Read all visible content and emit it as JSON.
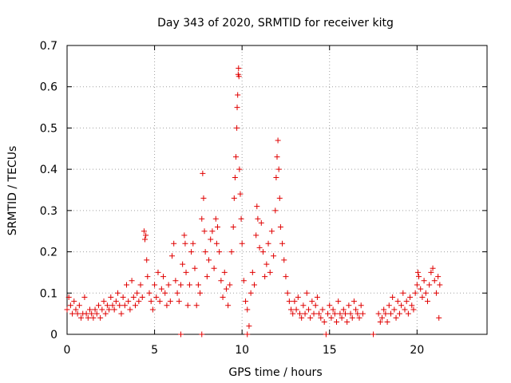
{
  "chart_data": {
    "type": "scatter",
    "title": "Day 343 of 2020, SRMTID for receiver kitg",
    "xlabel": "GPS time / hours",
    "ylabel": "SRMTID / TECUs",
    "xlim": [
      0,
      24
    ],
    "ylim": [
      0,
      0.7
    ],
    "x_ticks": [
      0,
      5,
      10,
      15,
      20
    ],
    "x_tick_labels": [
      "0",
      "5",
      "10",
      "15",
      "20"
    ],
    "y_ticks": [
      0,
      0.1,
      0.2,
      0.3,
      0.4,
      0.5,
      0.6,
      0.7
    ],
    "y_tick_labels": [
      "0",
      "0.1",
      "0.2",
      "0.3",
      "0.4",
      "0.5",
      "0.6",
      "0.7"
    ],
    "grid": true,
    "marker": "+",
    "marker_color": "#e00000",
    "series": [
      {
        "name": "SRMTID",
        "points": [
          [
            0.0,
            0.06
          ],
          [
            0.1,
            0.09
          ],
          [
            0.2,
            0.07
          ],
          [
            0.3,
            0.05
          ],
          [
            0.4,
            0.08
          ],
          [
            0.5,
            0.06
          ],
          [
            0.6,
            0.05
          ],
          [
            0.7,
            0.07
          ],
          [
            0.8,
            0.04
          ],
          [
            0.9,
            0.05
          ],
          [
            1.0,
            0.09
          ],
          [
            1.1,
            0.05
          ],
          [
            1.2,
            0.04
          ],
          [
            1.3,
            0.06
          ],
          [
            1.4,
            0.05
          ],
          [
            1.5,
            0.04
          ],
          [
            1.6,
            0.06
          ],
          [
            1.7,
            0.05
          ],
          [
            1.8,
            0.07
          ],
          [
            1.9,
            0.04
          ],
          [
            2.0,
            0.06
          ],
          [
            2.1,
            0.08
          ],
          [
            2.2,
            0.05
          ],
          [
            2.3,
            0.07
          ],
          [
            2.4,
            0.06
          ],
          [
            2.5,
            0.09
          ],
          [
            2.6,
            0.07
          ],
          [
            2.7,
            0.06
          ],
          [
            2.8,
            0.08
          ],
          [
            2.9,
            0.1
          ],
          [
            3.0,
            0.07
          ],
          [
            3.1,
            0.05
          ],
          [
            3.2,
            0.09
          ],
          [
            3.3,
            0.07
          ],
          [
            3.4,
            0.12
          ],
          [
            3.5,
            0.08
          ],
          [
            3.6,
            0.06
          ],
          [
            3.7,
            0.13
          ],
          [
            3.8,
            0.09
          ],
          [
            3.9,
            0.07
          ],
          [
            4.0,
            0.1
          ],
          [
            4.1,
            0.08
          ],
          [
            4.2,
            0.12
          ],
          [
            4.3,
            0.09
          ],
          [
            4.4,
            0.25
          ],
          [
            4.45,
            0.23
          ],
          [
            4.5,
            0.24
          ],
          [
            4.55,
            0.18
          ],
          [
            4.6,
            0.14
          ],
          [
            4.7,
            0.1
          ],
          [
            4.8,
            0.08
          ],
          [
            4.9,
            0.06
          ],
          [
            5.0,
            0.12
          ],
          [
            5.1,
            0.09
          ],
          [
            5.2,
            0.15
          ],
          [
            5.3,
            0.08
          ],
          [
            5.4,
            0.11
          ],
          [
            5.5,
            0.14
          ],
          [
            5.6,
            0.1
          ],
          [
            5.7,
            0.07
          ],
          [
            5.8,
            0.12
          ],
          [
            5.9,
            0.08
          ],
          [
            6.0,
            0.19
          ],
          [
            6.1,
            0.22
          ],
          [
            6.2,
            0.13
          ],
          [
            6.3,
            0.1
          ],
          [
            6.4,
            0.08
          ],
          [
            6.5,
            0.12
          ],
          [
            6.6,
            0.17
          ],
          [
            6.7,
            0.24
          ],
          [
            6.75,
            0.22
          ],
          [
            6.8,
            0.15
          ],
          [
            6.9,
            0.07
          ],
          [
            7.0,
            0.12
          ],
          [
            7.1,
            0.2
          ],
          [
            7.2,
            0.22
          ],
          [
            7.3,
            0.16
          ],
          [
            7.4,
            0.07
          ],
          [
            7.5,
            0.12
          ],
          [
            7.6,
            0.1
          ],
          [
            7.7,
            0.28
          ],
          [
            7.75,
            0.39
          ],
          [
            7.8,
            0.33
          ],
          [
            7.85,
            0.25
          ],
          [
            7.9,
            0.2
          ],
          [
            8.0,
            0.14
          ],
          [
            8.1,
            0.18
          ],
          [
            8.2,
            0.23
          ],
          [
            8.3,
            0.25
          ],
          [
            8.4,
            0.16
          ],
          [
            8.5,
            0.28
          ],
          [
            8.55,
            0.22
          ],
          [
            8.6,
            0.26
          ],
          [
            8.7,
            0.2
          ],
          [
            8.8,
            0.13
          ],
          [
            8.9,
            0.09
          ],
          [
            9.0,
            0.15
          ],
          [
            9.1,
            0.11
          ],
          [
            9.2,
            0.07
          ],
          [
            9.3,
            0.12
          ],
          [
            9.4,
            0.2
          ],
          [
            9.5,
            0.26
          ],
          [
            9.55,
            0.33
          ],
          [
            9.6,
            0.38
          ],
          [
            9.65,
            0.43
          ],
          [
            9.7,
            0.5
          ],
          [
            9.72,
            0.55
          ],
          [
            9.75,
            0.58
          ],
          [
            9.78,
            0.63
          ],
          [
            9.8,
            0.645
          ],
          [
            9.82,
            0.625
          ],
          [
            9.85,
            0.4
          ],
          [
            9.9,
            0.34
          ],
          [
            9.95,
            0.28
          ],
          [
            10.0,
            0.22
          ],
          [
            10.1,
            0.13
          ],
          [
            10.2,
            0.08
          ],
          [
            10.3,
            0.06
          ],
          [
            10.4,
            0.02
          ],
          [
            10.5,
            0.1
          ],
          [
            10.6,
            0.15
          ],
          [
            10.7,
            0.12
          ],
          [
            10.8,
            0.24
          ],
          [
            10.85,
            0.31
          ],
          [
            10.9,
            0.28
          ],
          [
            11.0,
            0.21
          ],
          [
            11.1,
            0.27
          ],
          [
            11.2,
            0.2
          ],
          [
            11.3,
            0.14
          ],
          [
            11.4,
            0.17
          ],
          [
            11.5,
            0.22
          ],
          [
            11.6,
            0.15
          ],
          [
            11.7,
            0.25
          ],
          [
            11.8,
            0.19
          ],
          [
            11.9,
            0.3
          ],
          [
            11.95,
            0.38
          ],
          [
            12.0,
            0.43
          ],
          [
            12.05,
            0.47
          ],
          [
            12.1,
            0.4
          ],
          [
            12.15,
            0.33
          ],
          [
            12.2,
            0.26
          ],
          [
            12.3,
            0.22
          ],
          [
            12.4,
            0.18
          ],
          [
            12.5,
            0.14
          ],
          [
            12.6,
            0.1
          ],
          [
            12.7,
            0.08
          ],
          [
            12.8,
            0.06
          ],
          [
            12.9,
            0.05
          ],
          [
            13.0,
            0.08
          ],
          [
            13.1,
            0.06
          ],
          [
            13.2,
            0.09
          ],
          [
            13.3,
            0.05
          ],
          [
            13.4,
            0.04
          ],
          [
            13.5,
            0.07
          ],
          [
            13.6,
            0.05
          ],
          [
            13.7,
            0.1
          ],
          [
            13.8,
            0.06
          ],
          [
            13.9,
            0.04
          ],
          [
            14.0,
            0.08
          ],
          [
            14.1,
            0.05
          ],
          [
            14.2,
            0.07
          ],
          [
            14.3,
            0.09
          ],
          [
            14.4,
            0.05
          ],
          [
            14.5,
            0.04
          ],
          [
            14.6,
            0.06
          ],
          [
            14.7,
            0.03
          ],
          [
            14.8,
            0.0
          ],
          [
            14.9,
            0.05
          ],
          [
            15.0,
            0.07
          ],
          [
            15.1,
            0.04
          ],
          [
            15.2,
            0.06
          ],
          [
            15.3,
            0.05
          ],
          [
            15.4,
            0.03
          ],
          [
            15.5,
            0.08
          ],
          [
            15.6,
            0.05
          ],
          [
            15.7,
            0.04
          ],
          [
            15.8,
            0.06
          ],
          [
            15.9,
            0.05
          ],
          [
            16.0,
            0.03
          ],
          [
            16.1,
            0.07
          ],
          [
            16.2,
            0.05
          ],
          [
            16.3,
            0.04
          ],
          [
            16.4,
            0.08
          ],
          [
            16.5,
            0.06
          ],
          [
            16.6,
            0.05
          ],
          [
            16.7,
            0.04
          ],
          [
            16.8,
            0.07
          ],
          [
            16.9,
            0.05
          ],
          [
            17.5,
            0.0
          ],
          [
            17.8,
            0.05
          ],
          [
            17.9,
            0.03
          ],
          [
            18.0,
            0.04
          ],
          [
            18.1,
            0.06
          ],
          [
            18.2,
            0.05
          ],
          [
            18.3,
            0.03
          ],
          [
            18.4,
            0.07
          ],
          [
            18.5,
            0.05
          ],
          [
            18.6,
            0.09
          ],
          [
            18.7,
            0.06
          ],
          [
            18.8,
            0.04
          ],
          [
            18.9,
            0.08
          ],
          [
            19.0,
            0.05
          ],
          [
            19.1,
            0.07
          ],
          [
            19.2,
            0.1
          ],
          [
            19.3,
            0.06
          ],
          [
            19.4,
            0.08
          ],
          [
            19.5,
            0.05
          ],
          [
            19.6,
            0.09
          ],
          [
            19.7,
            0.07
          ],
          [
            19.8,
            0.06
          ],
          [
            19.9,
            0.1
          ],
          [
            20.0,
            0.12
          ],
          [
            20.05,
            0.15
          ],
          [
            20.1,
            0.14
          ],
          [
            20.2,
            0.11
          ],
          [
            20.3,
            0.09
          ],
          [
            20.4,
            0.13
          ],
          [
            20.5,
            0.1
          ],
          [
            20.6,
            0.08
          ],
          [
            20.7,
            0.12
          ],
          [
            20.8,
            0.15
          ],
          [
            20.9,
            0.16
          ],
          [
            21.0,
            0.13
          ],
          [
            21.1,
            0.1
          ],
          [
            21.2,
            0.14
          ],
          [
            21.25,
            0.04
          ],
          [
            21.3,
            0.12
          ],
          [
            6.5,
            0.0
          ],
          [
            7.7,
            0.0
          ],
          [
            10.3,
            0.0
          ]
        ]
      }
    ]
  }
}
